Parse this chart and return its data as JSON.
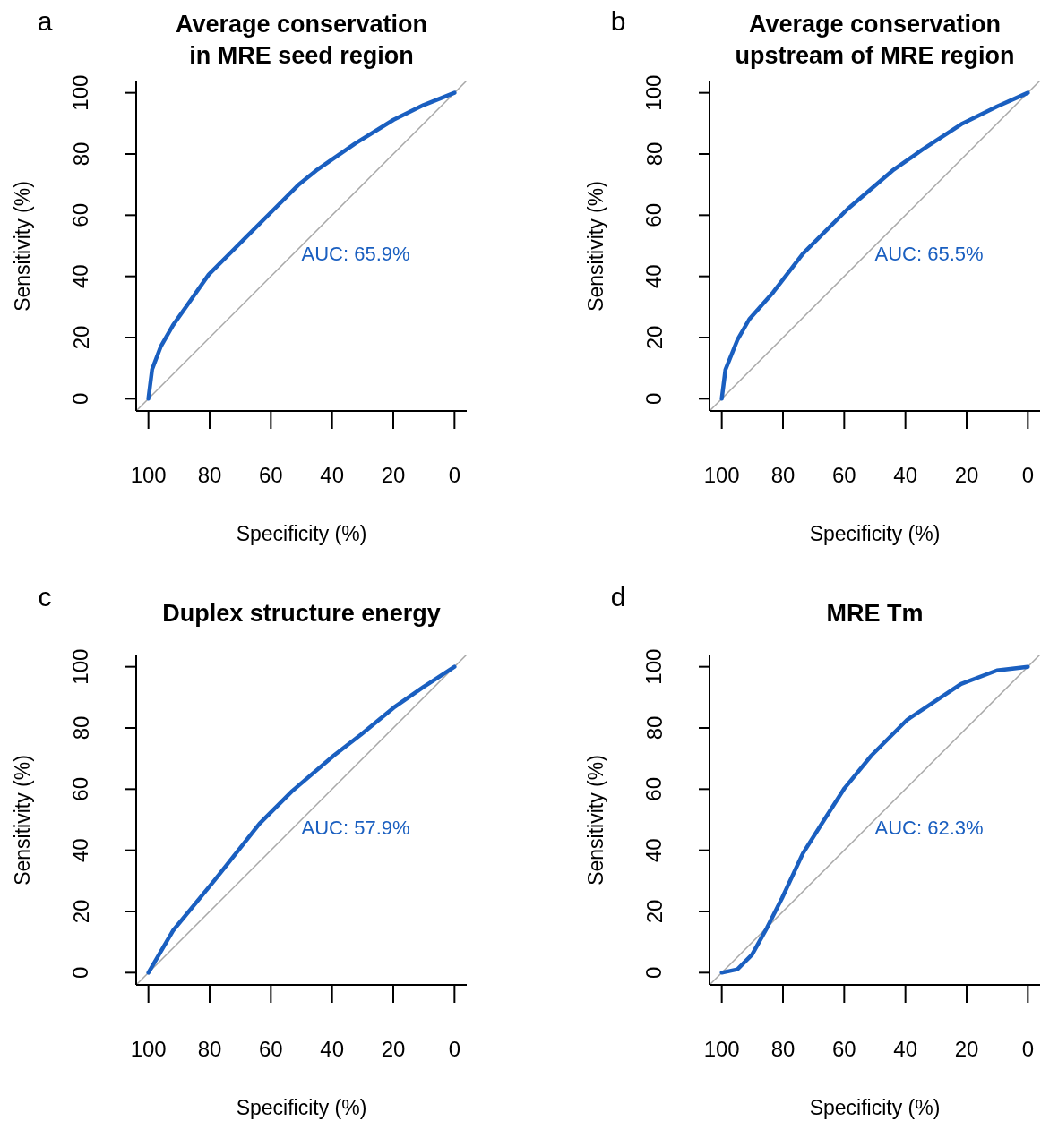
{
  "chart_data": [
    {
      "type": "line",
      "title": "Average conservation\nin MRE seed region",
      "xlabel": "Specificity (%)",
      "ylabel": "Sensitivity (%)",
      "annotations": [
        "a",
        "AUC: 65.9%"
      ],
      "xlim": [
        104,
        -4
      ],
      "ylim": [
        -4,
        104
      ],
      "xticks": [
        100,
        80,
        60,
        40,
        20,
        0
      ],
      "yticks": [
        0,
        20,
        40,
        60,
        80,
        100
      ],
      "grid": false,
      "legend": false,
      "series": [
        {
          "color": "#a8a8a8",
          "x": [
            104,
            -4
          ],
          "values": [
            -4,
            104
          ]
        },
        {
          "color": "#1a5fc0",
          "x": [
            100,
            98.8,
            95.9,
            92,
            87.1,
            80.3,
            68.6,
            58.9,
            51.1,
            45.2,
            32.5,
            19.9,
            10.1,
            0
          ],
          "values": [
            0,
            9.6,
            17.2,
            24,
            30.9,
            40.6,
            52.3,
            62,
            69.8,
            74.6,
            83.4,
            91.2,
            96,
            100
          ]
        }
      ]
    },
    {
      "type": "line",
      "title": "Average conservation\nupstream of MRE region",
      "xlabel": "Specificity (%)",
      "ylabel": "Sensitivity (%)",
      "annotations": [
        "b",
        "AUC: 65.5%"
      ],
      "xlim": [
        104,
        -4
      ],
      "ylim": [
        -4,
        104
      ],
      "xticks": [
        100,
        80,
        60,
        40,
        20,
        0
      ],
      "yticks": [
        0,
        20,
        40,
        60,
        80,
        100
      ],
      "grid": false,
      "legend": false,
      "series": [
        {
          "color": "#a8a8a8",
          "x": [
            104,
            -4
          ],
          "values": [
            -4,
            104
          ]
        },
        {
          "color": "#1a5fc0",
          "x": [
            100,
            98.8,
            94.9,
            91,
            83.2,
            73.5,
            58.9,
            44.2,
            34.5,
            21.8,
            10.1,
            0
          ],
          "values": [
            0,
            9.5,
            19.2,
            26,
            34.8,
            47.4,
            62,
            74.6,
            81.4,
            89.7,
            95.5,
            100
          ]
        }
      ]
    },
    {
      "type": "line",
      "title": "Duplex structure energy",
      "xlabel": "Specificity (%)",
      "ylabel": "Sensitivity (%)",
      "annotations": [
        "c",
        "AUC: 57.9%"
      ],
      "xlim": [
        104,
        -4
      ],
      "ylim": [
        -4,
        104
      ],
      "xticks": [
        100,
        80,
        60,
        40,
        20,
        0
      ],
      "yticks": [
        0,
        20,
        40,
        60,
        80,
        100
      ],
      "grid": false,
      "legend": false,
      "series": [
        {
          "color": "#a8a8a8",
          "x": [
            104,
            -4
          ],
          "values": [
            -4,
            104
          ]
        },
        {
          "color": "#1a5fc0",
          "x": [
            100,
            92,
            78.4,
            63.7,
            53,
            39.4,
            30.6,
            19.9,
            10.1,
            0
          ],
          "values": [
            0,
            13.7,
            30.2,
            48.7,
            59.4,
            71,
            77.8,
            86.6,
            93.4,
            100
          ]
        }
      ]
    },
    {
      "type": "line",
      "title": "MRE Tm",
      "xlabel": "Specificity (%)",
      "ylabel": "Sensitivity (%)",
      "annotations": [
        "d",
        "AUC: 62.3%"
      ],
      "xlim": [
        104,
        -4
      ],
      "ylim": [
        -4,
        104
      ],
      "xticks": [
        100,
        80,
        60,
        40,
        20,
        0
      ],
      "yticks": [
        0,
        20,
        40,
        60,
        80,
        100
      ],
      "grid": false,
      "legend": false,
      "series": [
        {
          "color": "#a8a8a8",
          "x": [
            104,
            -4
          ],
          "values": [
            -4,
            104
          ]
        },
        {
          "color": "#1a5fc0",
          "x": [
            100,
            94.9,
            90.1,
            85.2,
            80.3,
            73.5,
            66.7,
            59.9,
            51.1,
            39.4,
            21.8,
            10.1,
            0
          ],
          "values": [
            0,
            1.1,
            5.9,
            14.7,
            24.4,
            39,
            49.7,
            60.3,
            71,
            82.7,
            94.4,
            98.8,
            100
          ]
        }
      ]
    }
  ]
}
